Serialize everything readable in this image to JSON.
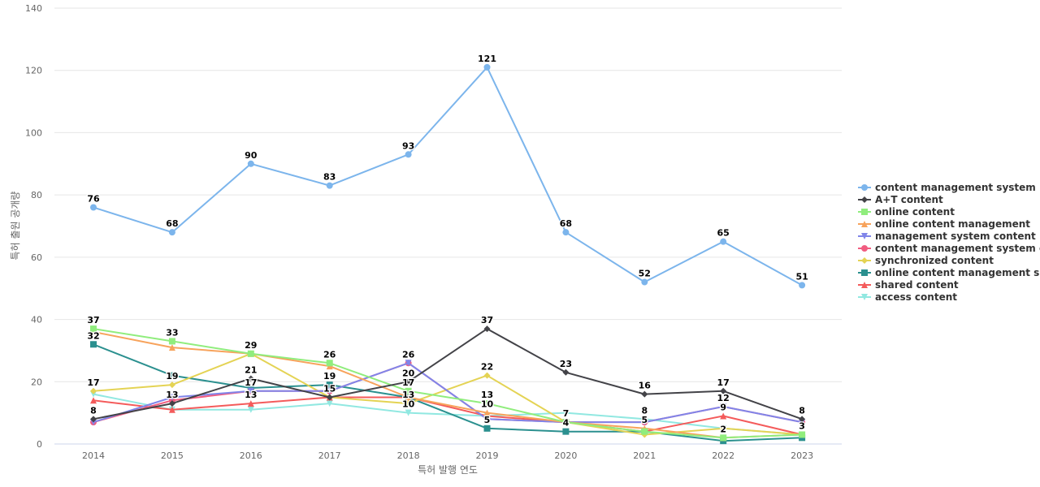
{
  "chart_data": {
    "type": "line",
    "title": "",
    "xlabel": "특허 발행 연도",
    "ylabel": "특허 출원 공개량",
    "ylim": [
      0,
      140
    ],
    "yticks": [
      0,
      20,
      40,
      60,
      80,
      100,
      120,
      140
    ],
    "categories": [
      "2014",
      "2015",
      "2016",
      "2017",
      "2018",
      "2019",
      "2020",
      "2021",
      "2022",
      "2023"
    ],
    "grid": true,
    "legend_position": "right",
    "series": [
      {
        "name": "content management system",
        "color": "#7cb5ec",
        "marker": "circle",
        "values": [
          76,
          68,
          90,
          83,
          93,
          121,
          68,
          52,
          65,
          51
        ],
        "labeled": true
      },
      {
        "name": "A+T content",
        "color": "#434348",
        "marker": "diamond",
        "values": [
          8,
          13,
          21,
          15,
          20,
          37,
          23,
          16,
          17,
          8
        ],
        "labeled": true
      },
      {
        "name": "online content",
        "color": "#90ed7d",
        "marker": "square",
        "values": [
          37,
          33,
          29,
          26,
          17,
          13,
          7,
          4,
          2,
          3
        ],
        "labeled": false
      },
      {
        "name": "online content management",
        "color": "#f7a35c",
        "marker": "triangle",
        "values": [
          36,
          31,
          29,
          25,
          15,
          10,
          7,
          5,
          2,
          3
        ],
        "labeled": false
      },
      {
        "name": "management system content",
        "color": "#8085e9",
        "marker": "triangle-down",
        "values": [
          7,
          15,
          17,
          17,
          26,
          8,
          7,
          7,
          12,
          7
        ],
        "labeled": false
      },
      {
        "name": "content management system c...",
        "color": "#f15c80",
        "marker": "circle",
        "values": [
          7,
          14,
          17,
          17,
          26,
          8,
          7,
          7,
          12,
          7
        ],
        "labeled": false
      },
      {
        "name": "synchronized content",
        "color": "#e4d354",
        "marker": "diamond",
        "values": [
          17,
          19,
          29,
          15,
          13,
          22,
          7,
          3,
          5,
          3
        ],
        "labeled": false
      },
      {
        "name": "online content management s...",
        "color": "#2b908f",
        "marker": "square",
        "values": [
          32,
          22,
          18,
          19,
          15,
          5,
          4,
          4,
          1,
          2
        ],
        "labeled": false
      },
      {
        "name": "shared content",
        "color": "#f45b5b",
        "marker": "triangle",
        "values": [
          14,
          11,
          13,
          15,
          15,
          9,
          7,
          4,
          9,
          3
        ],
        "labeled": false
      },
      {
        "name": "access content",
        "color": "#91e8e1",
        "marker": "triangle-down",
        "values": [
          16,
          11,
          11,
          13,
          10,
          9,
          10,
          8,
          5,
          3
        ],
        "labeled": false
      }
    ],
    "data_labels": [
      {
        "text": "76",
        "x": "2014",
        "y": 76
      },
      {
        "text": "68",
        "x": "2015",
        "y": 68
      },
      {
        "text": "90",
        "x": "2016",
        "y": 90
      },
      {
        "text": "83",
        "x": "2017",
        "y": 83
      },
      {
        "text": "93",
        "x": "2018",
        "y": 93
      },
      {
        "text": "121",
        "x": "2019",
        "y": 121
      },
      {
        "text": "68",
        "x": "2020",
        "y": 68
      },
      {
        "text": "52",
        "x": "2021",
        "y": 52
      },
      {
        "text": "65",
        "x": "2022",
        "y": 65
      },
      {
        "text": "51",
        "x": "2023",
        "y": 51
      },
      {
        "text": "37",
        "x": "2014",
        "y": 37
      },
      {
        "text": "32",
        "x": "2014",
        "y": 32
      },
      {
        "text": "17",
        "x": "2014",
        "y": 17
      },
      {
        "text": "8",
        "x": "2014",
        "y": 8
      },
      {
        "text": "33",
        "x": "2015",
        "y": 33
      },
      {
        "text": "19",
        "x": "2015",
        "y": 19
      },
      {
        "text": "13",
        "x": "2015",
        "y": 13
      },
      {
        "text": "29",
        "x": "2016",
        "y": 29
      },
      {
        "text": "21",
        "x": "2016",
        "y": 21
      },
      {
        "text": "17",
        "x": "2016",
        "y": 17
      },
      {
        "text": "13",
        "x": "2016",
        "y": 13
      },
      {
        "text": "26",
        "x": "2017",
        "y": 26
      },
      {
        "text": "19",
        "x": "2017",
        "y": 19
      },
      {
        "text": "15",
        "x": "2017",
        "y": 15
      },
      {
        "text": "26",
        "x": "2018",
        "y": 26
      },
      {
        "text": "20",
        "x": "2018",
        "y": 20
      },
      {
        "text": "17",
        "x": "2018",
        "y": 17
      },
      {
        "text": "13",
        "x": "2018",
        "y": 13
      },
      {
        "text": "10",
        "x": "2018",
        "y": 10
      },
      {
        "text": "37",
        "x": "2019",
        "y": 37
      },
      {
        "text": "22",
        "x": "2019",
        "y": 22
      },
      {
        "text": "13",
        "x": "2019",
        "y": 13
      },
      {
        "text": "10",
        "x": "2019",
        "y": 10
      },
      {
        "text": "5",
        "x": "2019",
        "y": 5
      },
      {
        "text": "23",
        "x": "2020",
        "y": 23
      },
      {
        "text": "7",
        "x": "2020",
        "y": 7
      },
      {
        "text": "4",
        "x": "2020",
        "y": 4
      },
      {
        "text": "16",
        "x": "2021",
        "y": 16
      },
      {
        "text": "8",
        "x": "2021",
        "y": 8
      },
      {
        "text": "5",
        "x": "2021",
        "y": 5
      },
      {
        "text": "17",
        "x": "2022",
        "y": 17
      },
      {
        "text": "12",
        "x": "2022",
        "y": 12
      },
      {
        "text": "9",
        "x": "2022",
        "y": 9
      },
      {
        "text": "2",
        "x": "2022",
        "y": 2
      },
      {
        "text": "8",
        "x": "2023",
        "y": 8
      },
      {
        "text": "3",
        "x": "2023",
        "y": 3
      }
    ]
  }
}
